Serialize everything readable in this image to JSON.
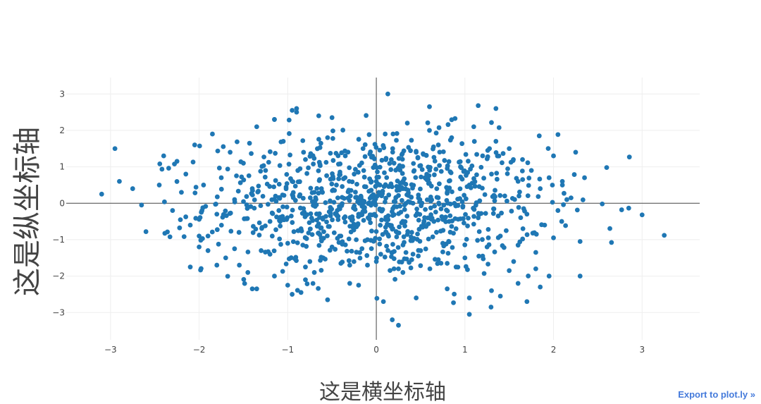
{
  "export_link": {
    "label": "Export to plot.ly »"
  },
  "chart_data": {
    "type": "scatter",
    "xlabel": "这是横坐标轴",
    "ylabel": "这是纵坐标轴",
    "xlim": [
      -3.5,
      3.65
    ],
    "ylim": [
      -3.75,
      3.45
    ],
    "xticks": [
      -3,
      -2,
      -1,
      0,
      1,
      2,
      3
    ],
    "yticks": [
      -3,
      -2,
      -1,
      0,
      1,
      2,
      3
    ],
    "xtick_labels": [
      "−3",
      "−2",
      "−1",
      "0",
      "1",
      "2",
      "3"
    ],
    "ytick_labels": [
      "−3",
      "−2",
      "−1",
      "0",
      "1",
      "2",
      "3"
    ],
    "grid": true,
    "zeroline": true,
    "marker_color": "#1f77b4",
    "series": [
      {
        "x": [
          -3.1,
          -2.95,
          -2.9,
          -2.75,
          -2.65,
          -2.6,
          -2.45,
          -2.4,
          -2.3,
          -2.25,
          -2.2,
          -2.15,
          -2.1,
          -2.05,
          -2.0,
          -1.95,
          -1.9,
          -1.85,
          -1.8,
          -1.75,
          -1.7,
          -1.65,
          -1.6,
          -1.55,
          -1.5,
          -1.45,
          -1.4,
          -1.35,
          -1.3,
          -1.25,
          -1.2,
          -1.15,
          -1.1,
          -1.05,
          -1.0,
          -0.95,
          -0.9,
          -0.85,
          -0.8,
          -0.75,
          -0.7,
          -0.65,
          -0.6,
          -0.55,
          -0.5,
          -0.45,
          -0.4,
          -0.35,
          -0.3,
          -0.25,
          -0.2,
          -0.15,
          -0.1,
          -0.05,
          0.0,
          0.05,
          0.1,
          0.15,
          0.2,
          0.25,
          0.3,
          0.35,
          0.4,
          0.45,
          0.5,
          0.55,
          0.6,
          0.65,
          0.7,
          0.75,
          0.8,
          0.85,
          0.9,
          0.95,
          1.0,
          1.05,
          1.1,
          1.15,
          1.2,
          1.25,
          1.3,
          1.35,
          1.4,
          1.45,
          1.5,
          1.55,
          1.6,
          1.65,
          1.7,
          1.75,
          1.8,
          1.85,
          1.9,
          1.95,
          2.0,
          2.05,
          2.1,
          2.15,
          2.25,
          2.3,
          2.35,
          2.55,
          2.6,
          3.0,
          3.25,
          0.13,
          0.6,
          1.15,
          1.35,
          -0.95,
          -0.9,
          -0.5,
          -1.15,
          -0.95,
          -0.85,
          0.08,
          0.18,
          0.25,
          1.05,
          1.05,
          -0.55,
          1.7,
          1.4,
          -1.0,
          -1.4,
          -1.15,
          -0.8,
          -0.3,
          -0.2,
          0.45,
          0.8,
          1.3,
          1.6,
          1.85,
          2.3,
          -2.1,
          -1.8,
          -1.35,
          -0.7,
          0.3,
          0.9,
          1.5,
          1.95,
          -1.9,
          -1.2,
          -0.6,
          0.0,
          0.7,
          1.2,
          1.8,
          -0.4,
          0.4,
          -1.6,
          1.6,
          -2.0,
          2.0,
          -0.1,
          0.2,
          -0.8,
          0.8
        ],
        "y": [
          0.25,
          1.5,
          0.6,
          0.4,
          -0.05,
          -0.78,
          0.5,
          1.3,
          -0.2,
          1.15,
          0.3,
          0.8,
          -0.6,
          1.6,
          -1.2,
          0.5,
          -0.9,
          1.9,
          -0.3,
          0.7,
          -1.5,
          1.4,
          0.1,
          -0.8,
          1.1,
          -1.9,
          0.4,
          2.1,
          -1.3,
          0.9,
          -0.5,
          2.3,
          -0.2,
          1.7,
          -1.1,
          0.6,
          2.6,
          -0.7,
          1.2,
          -1.6,
          0.3,
          2.4,
          -0.4,
          1.8,
          -1.2,
          0.5,
          -0.9,
          1.3,
          -1.7,
          0.8,
          -0.3,
          1.5,
          -1.0,
          0.2,
          0.6,
          -1.4,
          1.9,
          -0.6,
          1.1,
          -1.8,
          0.4,
          2.2,
          -0.8,
          1.4,
          -1.3,
          0.7,
          2.0,
          -0.5,
          1.6,
          -1.1,
          0.3,
          1.8,
          -0.7,
          1.0,
          -1.5,
          0.5,
          2.1,
          -0.4,
          1.3,
          -1.2,
          0.8,
          1.7,
          -0.9,
          0.2,
          1.5,
          -1.6,
          0.6,
          1.2,
          -0.3,
          0.9,
          -1.8,
          0.4,
          -0.6,
          0.7,
          1.3,
          -0.2,
          0.5,
          0.1,
          1.4,
          -1.05,
          0.7,
          -0.02,
          0.98,
          -0.32,
          -0.88,
          3.0,
          2.65,
          2.68,
          2.6,
          2.55,
          2.5,
          2.35,
          2.3,
          -2.5,
          -2.45,
          -2.7,
          -3.2,
          -3.35,
          -3.05,
          -2.6,
          -2.65,
          -2.7,
          -2.55,
          -2.25,
          -2.35,
          -2.0,
          -2.1,
          -2.2,
          -2.25,
          -2.6,
          -2.35,
          -2.4,
          -2.2,
          -2.3,
          -2.0,
          -1.75,
          -1.7,
          -2.35,
          -1.9,
          -1.9,
          -1.75,
          -1.85,
          -2.0,
          -1.3,
          -1.4,
          -1.5,
          -1.6,
          -1.55,
          -1.45,
          -1.35,
          -1.65,
          -1.55,
          -1.25,
          -1.15,
          -0.9,
          -0.95,
          -1.7,
          -1.8,
          -1.75,
          -1.65
        ]
      }
    ]
  }
}
